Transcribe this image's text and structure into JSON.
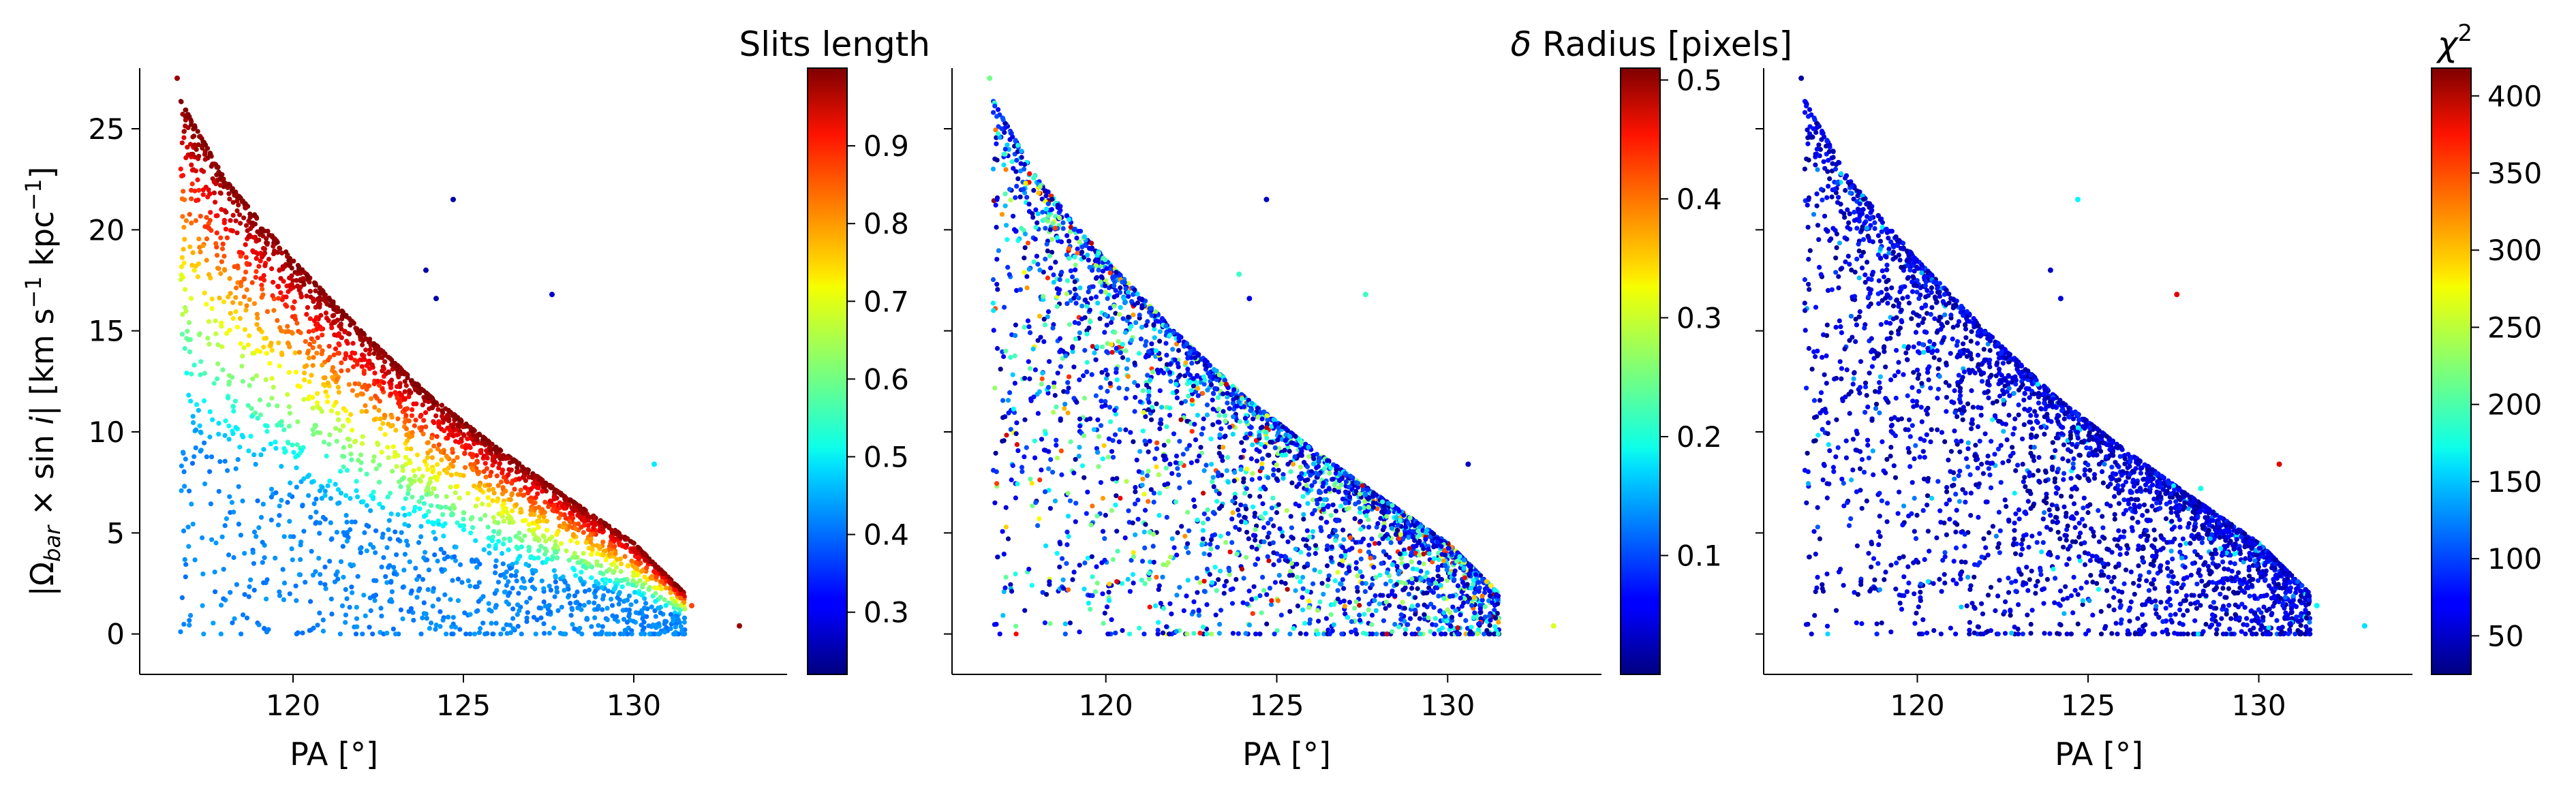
{
  "figure": {
    "panels": [
      {
        "id": "p1",
        "xlabel": "PA [°]",
        "ylabel_parts": {
          "lead": "|Ω",
          "sub": "bar",
          "mid": " × sin ",
          "italic": "i",
          "tail": "|   [km s",
          "sup1": "−1",
          "tail2": " kpc",
          "sup2": "−1",
          "close": "]"
        },
        "colorbar": {
          "title": "Slits length",
          "range": [
            0.22,
            1.0
          ],
          "ticks": [
            "0.3",
            "0.4",
            "0.5",
            "0.6",
            "0.7",
            "0.8",
            "0.9"
          ],
          "tick_values": [
            0.3,
            0.4,
            0.5,
            0.6,
            0.7,
            0.8,
            0.9
          ]
        }
      },
      {
        "id": "p2",
        "xlabel": "PA [°]",
        "colorbar": {
          "title_prefix": "δ",
          "title": " Radius [pixels]",
          "range": [
            0.0,
            0.51
          ],
          "ticks": [
            "0.1",
            "0.2",
            "0.3",
            "0.4",
            "0.5"
          ],
          "tick_values": [
            0.1,
            0.2,
            0.3,
            0.4,
            0.5
          ]
        }
      },
      {
        "id": "p3",
        "xlabel": "PA [°]",
        "colorbar": {
          "title_base": "χ",
          "title_sup": "2",
          "range": [
            25,
            418
          ],
          "ticks": [
            "50",
            "100",
            "150",
            "200",
            "250",
            "300",
            "350",
            "400"
          ],
          "tick_values": [
            50,
            100,
            150,
            200,
            250,
            300,
            350,
            400
          ]
        }
      }
    ],
    "xticks": [
      "120",
      "125",
      "130"
    ],
    "xtick_values": [
      120,
      125,
      130
    ],
    "yticks": [
      "0",
      "5",
      "10",
      "15",
      "20",
      "25"
    ],
    "ytick_values": [
      0,
      5,
      10,
      15,
      20,
      25
    ],
    "colormap": "jet"
  },
  "chart_data": [
    {
      "type": "scatter",
      "title": "",
      "xlabel": "PA [°]",
      "ylabel": "|Ω_bar × sin i|   [km s^-1 kpc^-1]",
      "xlim": [
        115.5,
        134.5
      ],
      "ylim": [
        -2,
        28
      ],
      "color_label": "Slits length",
      "color_range": [
        0.22,
        1.0
      ],
      "colormap": "jet",
      "envelope": {
        "x": [
          116.5,
          118,
          120,
          122,
          124,
          126,
          128,
          130,
          131.5
        ],
        "y_upper": [
          27,
          22.5,
          18.5,
          15,
          11.8,
          9.2,
          6.8,
          4.5,
          2.0
        ]
      },
      "min_pa": 116.5,
      "max_pa": 133.2,
      "point_count_estimate": 3500,
      "trend": "colour highest (dark red ~1.0) along the upper envelope, decreasing to ~0.4-0.5 (cyan) toward low Ω",
      "notable_points": [
        {
          "x": 124.7,
          "y": 21.5,
          "c": 0.25
        },
        {
          "x": 123.9,
          "y": 18.0,
          "c": 0.25
        },
        {
          "x": 124.2,
          "y": 16.6,
          "c": 0.25
        },
        {
          "x": 127.6,
          "y": 16.8,
          "c": 0.28
        },
        {
          "x": 130.6,
          "y": 8.4,
          "c": 0.5
        },
        {
          "x": 133.1,
          "y": 0.4,
          "c": 0.98
        },
        {
          "x": 131.7,
          "y": 1.4,
          "c": 0.85
        },
        {
          "x": 116.6,
          "y": 27.5,
          "c": 0.98
        }
      ]
    },
    {
      "type": "scatter",
      "title": "",
      "xlabel": "PA [°]",
      "ylabel": "",
      "xlim": [
        115.5,
        134.5
      ],
      "ylim": [
        -2,
        28
      ],
      "color_label": "δ Radius [pixels]",
      "color_range": [
        0.0,
        0.51
      ],
      "colormap": "jet",
      "envelope": {
        "x": [
          116.5,
          118,
          120,
          122,
          124,
          126,
          128,
          130,
          131.5
        ],
        "y_upper": [
          27,
          22.5,
          18.5,
          15,
          11.8,
          9.2,
          6.8,
          4.5,
          2.0
        ]
      },
      "min_pa": 116.5,
      "max_pa": 133.2,
      "point_count_estimate": 3500,
      "trend": "mostly dark blue (≤0.1), scattered cyan/green values 0.2-0.3, rare red/orange ~0.4-0.5",
      "notable_points": [
        {
          "x": 124.7,
          "y": 21.5,
          "c": 0.03
        },
        {
          "x": 123.9,
          "y": 17.8,
          "c": 0.22
        },
        {
          "x": 124.2,
          "y": 16.6,
          "c": 0.05
        },
        {
          "x": 127.6,
          "y": 16.8,
          "c": 0.22
        },
        {
          "x": 130.6,
          "y": 8.4,
          "c": 0.03
        },
        {
          "x": 133.1,
          "y": 0.4,
          "c": 0.3
        },
        {
          "x": 116.6,
          "y": 27.5,
          "c": 0.25
        }
      ]
    },
    {
      "type": "scatter",
      "title": "",
      "xlabel": "PA [°]",
      "ylabel": "",
      "xlim": [
        115.5,
        134.5
      ],
      "ylim": [
        -2,
        28
      ],
      "color_label": "χ^2",
      "color_range": [
        25,
        418
      ],
      "colormap": "jet",
      "envelope": {
        "x": [
          116.5,
          118,
          120,
          122,
          124,
          126,
          128,
          130,
          131.5
        ],
        "y_upper": [
          27,
          22.5,
          18.5,
          15,
          11.8,
          9.2,
          6.8,
          4.5,
          2.0
        ]
      },
      "min_pa": 116.5,
      "max_pa": 133.2,
      "point_count_estimate": 3500,
      "trend": "almost all points dark blue (χ² ≈ 30-80), a few cyan/red outliers",
      "notable_points": [
        {
          "x": 124.7,
          "y": 21.5,
          "c": 170
        },
        {
          "x": 123.9,
          "y": 18.0,
          "c": 50
        },
        {
          "x": 124.2,
          "y": 16.6,
          "c": 60
        },
        {
          "x": 127.6,
          "y": 16.8,
          "c": 380
        },
        {
          "x": 130.6,
          "y": 8.4,
          "c": 380
        },
        {
          "x": 128.3,
          "y": 7.2,
          "c": 180
        },
        {
          "x": 133.1,
          "y": 0.4,
          "c": 160
        },
        {
          "x": 131.7,
          "y": 1.4,
          "c": 170
        },
        {
          "x": 116.6,
          "y": 27.5,
          "c": 40
        }
      ]
    }
  ]
}
